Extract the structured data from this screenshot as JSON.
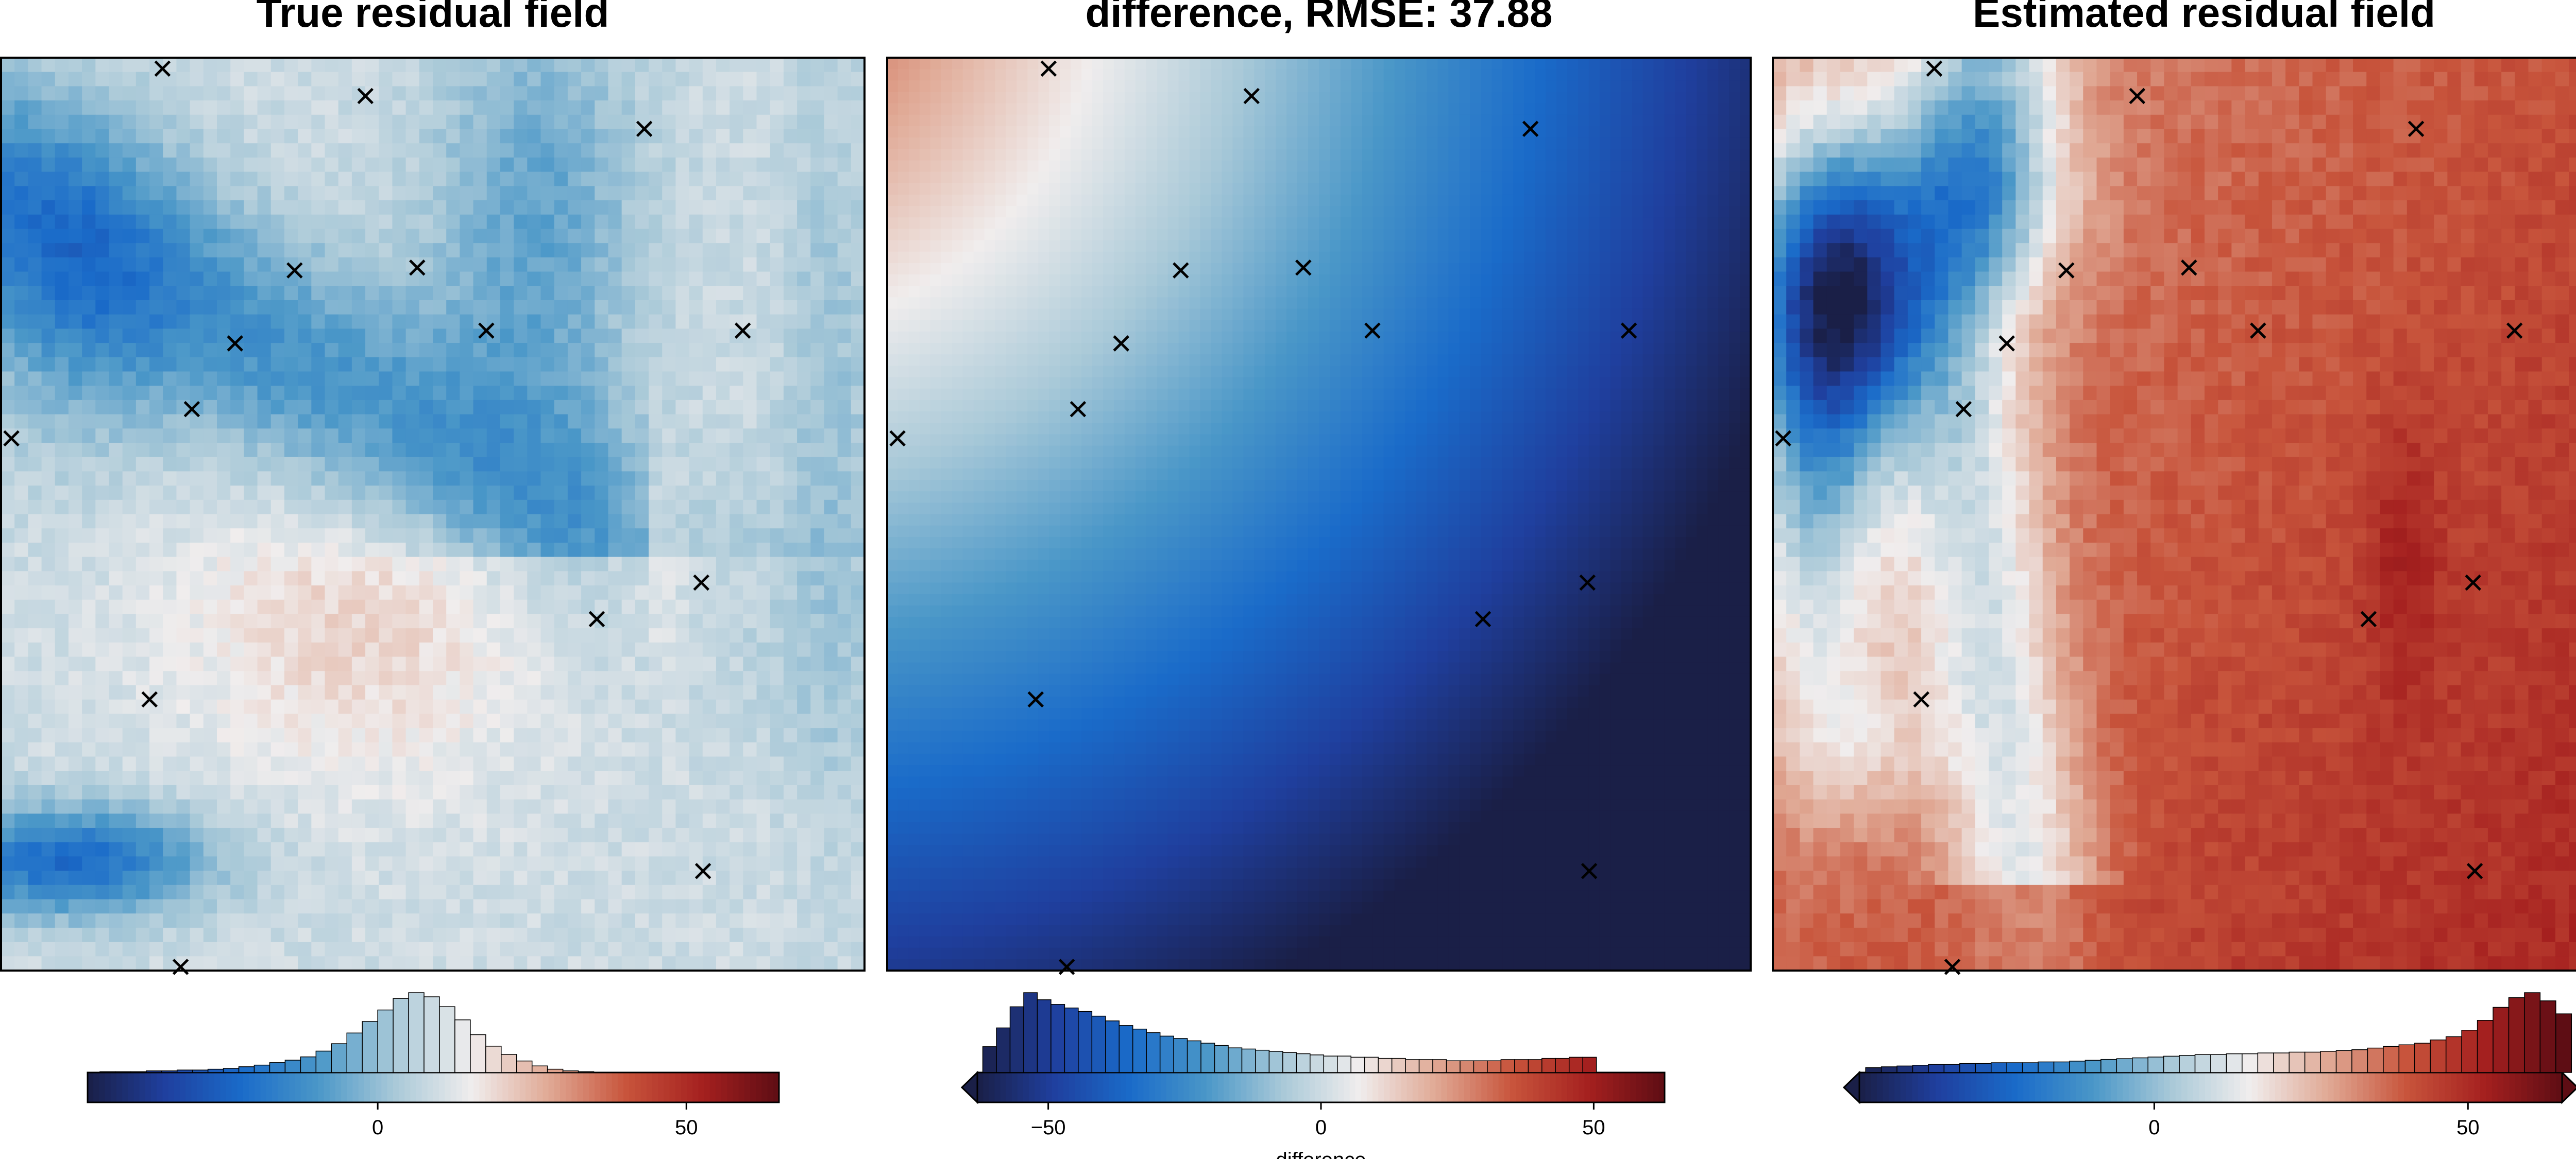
{
  "figure": {
    "panels": [
      {
        "key": "true",
        "title": "True residual field"
      },
      {
        "key": "diff",
        "title": "difference, RMSE: 37.88"
      },
      {
        "key": "est",
        "title": "Estimated residual field"
      }
    ]
  },
  "colors": {
    "colormap_stops": [
      "#1a1f47",
      "#1f3f9e",
      "#1a6bc9",
      "#4a97c8",
      "#a9c9d8",
      "#f0eded",
      "#e0a995",
      "#c8553c",
      "#a5201f",
      "#5e0d14"
    ],
    "frame": "#000000",
    "marker": "#000000"
  },
  "chart_data": [
    {
      "type": "heatmap",
      "title": "True residual field",
      "colormap": "balance",
      "color_range": [
        -47,
        65
      ],
      "grid_shape": [
        64,
        64
      ],
      "field_description": "blue diagonal band in upper-left/upper-center, strong blue lower-left, red-tinted blob in center, near-white elsewhere",
      "markers": {
        "symbol": "x",
        "points": [
          [
            0.187,
            0.012
          ],
          [
            0.422,
            0.042
          ],
          [
            0.745,
            0.078
          ],
          [
            0.34,
            0.233
          ],
          [
            0.482,
            0.23
          ],
          [
            0.271,
            0.313
          ],
          [
            0.562,
            0.299
          ],
          [
            0.859,
            0.299
          ],
          [
            0.221,
            0.385
          ],
          [
            0.012,
            0.417
          ],
          [
            0.811,
            0.575
          ],
          [
            0.69,
            0.615
          ],
          [
            0.172,
            0.703
          ],
          [
            0.813,
            0.891
          ],
          [
            0.208,
            0.996
          ]
        ]
      },
      "colorbar": {
        "ticks": [
          0,
          50
        ],
        "tick_labels": [
          "0",
          "50"
        ],
        "label": "",
        "extend": "none",
        "histogram": {
          "bin_width": 2.5,
          "start": -45,
          "counts": [
            1,
            1,
            1,
            2,
            2,
            3,
            3,
            4,
            5,
            7,
            9,
            12,
            15,
            19,
            26,
            35,
            48,
            62,
            76,
            90,
            97,
            92,
            80,
            64,
            46,
            32,
            22,
            14,
            8,
            4,
            2,
            1,
            0,
            0,
            0,
            0,
            0,
            0,
            0,
            0,
            0,
            0,
            0,
            0,
            0
          ]
        }
      }
    },
    {
      "type": "heatmap",
      "title": "difference, RMSE: 37.88",
      "colormap": "balance",
      "color_range": [
        -63,
        63
      ],
      "grid_shape": [
        64,
        64
      ],
      "field_description": "smooth field: red in upper-left corner, white arc, blue increasing toward dark navy in lower-right",
      "markers": {
        "symbol": "x",
        "points": [
          [
            0.187,
            0.012
          ],
          [
            0.422,
            0.042
          ],
          [
            0.745,
            0.078
          ],
          [
            0.34,
            0.233
          ],
          [
            0.482,
            0.23
          ],
          [
            0.271,
            0.313
          ],
          [
            0.562,
            0.299
          ],
          [
            0.859,
            0.299
          ],
          [
            0.221,
            0.385
          ],
          [
            0.012,
            0.417
          ],
          [
            0.811,
            0.575
          ],
          [
            0.69,
            0.615
          ],
          [
            0.172,
            0.703
          ],
          [
            0.813,
            0.891
          ],
          [
            0.208,
            0.996
          ]
        ]
      },
      "colorbar": {
        "ticks": [
          -50,
          0,
          50
        ],
        "tick_labels": [
          "−50",
          "0",
          "50"
        ],
        "label": "difference",
        "extend": "min",
        "histogram": {
          "bin_width": 2.5,
          "start": -62,
          "counts": [
            22,
            38,
            56,
            68,
            62,
            58,
            55,
            52,
            48,
            44,
            40,
            37,
            34,
            31,
            29,
            27,
            25,
            23,
            21,
            20,
            19,
            18,
            17,
            16,
            15,
            14,
            14,
            13,
            13,
            12,
            12,
            11,
            11,
            11,
            10,
            10,
            10,
            10,
            11,
            11,
            11,
            12,
            12,
            13,
            13,
            0,
            0,
            0,
            0,
            0
          ]
        }
      }
    },
    {
      "type": "heatmap",
      "title": "Estimated residual field",
      "colormap": "balance",
      "color_range": [
        -47,
        65
      ],
      "grid_shape": [
        64,
        64
      ],
      "field_description": "dark navy blob at upper-left, blue band along left side, white transition, predominantly red, darkest red in lower-right",
      "markers": {
        "symbol": "x",
        "points": [
          [
            0.187,
            0.012
          ],
          [
            0.422,
            0.042
          ],
          [
            0.745,
            0.078
          ],
          [
            0.34,
            0.233
          ],
          [
            0.482,
            0.23
          ],
          [
            0.271,
            0.313
          ],
          [
            0.562,
            0.299
          ],
          [
            0.859,
            0.299
          ],
          [
            0.221,
            0.385
          ],
          [
            0.012,
            0.417
          ],
          [
            0.811,
            0.575
          ],
          [
            0.69,
            0.615
          ],
          [
            0.172,
            0.703
          ],
          [
            0.813,
            0.891
          ],
          [
            0.208,
            0.996
          ]
        ]
      },
      "colorbar": {
        "ticks": [
          0,
          50
        ],
        "tick_labels": [
          "0",
          "50"
        ],
        "label": "",
        "extend": "both",
        "histogram": {
          "bin_width": 2.5,
          "start": -46,
          "counts": [
            6,
            7,
            8,
            9,
            10,
            10,
            11,
            11,
            12,
            12,
            12,
            13,
            13,
            14,
            15,
            16,
            17,
            18,
            19,
            20,
            21,
            22,
            22,
            23,
            23,
            24,
            24,
            25,
            25,
            26,
            27,
            28,
            30,
            32,
            34,
            36,
            40,
            44,
            52,
            64,
            80,
            92,
            98,
            88,
            72,
            58,
            46,
            38,
            32
          ]
        }
      }
    }
  ]
}
